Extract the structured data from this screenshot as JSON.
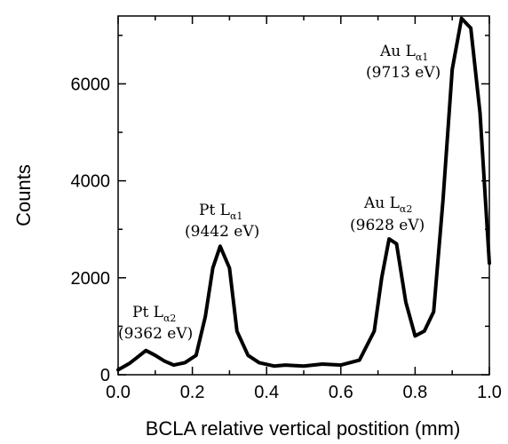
{
  "chart_data": {
    "type": "line",
    "xlabel": "BCLA relative vertical postition (mm)",
    "ylabel": "Counts",
    "xlim": [
      0.0,
      1.0
    ],
    "ylim": [
      0,
      7400
    ],
    "grid": false,
    "x_ticks": [
      "0.0",
      "0.2",
      "0.4",
      "0.6",
      "0.8",
      "1.0"
    ],
    "y_ticks": [
      "0",
      "2000",
      "4000",
      "6000"
    ],
    "series": [
      {
        "x": [
          0.0,
          0.03,
          0.05,
          0.075,
          0.1,
          0.125,
          0.15,
          0.18,
          0.21,
          0.235,
          0.255,
          0.275,
          0.3,
          0.32,
          0.35,
          0.38,
          0.42,
          0.45,
          0.5,
          0.55,
          0.6,
          0.65,
          0.69,
          0.71,
          0.73,
          0.75,
          0.775,
          0.8,
          0.825,
          0.85,
          0.875,
          0.9,
          0.925,
          0.95,
          0.975,
          1.0
        ],
        "y": [
          100,
          230,
          350,
          500,
          400,
          280,
          200,
          250,
          400,
          1200,
          2200,
          2650,
          2200,
          900,
          400,
          250,
          180,
          200,
          180,
          220,
          200,
          300,
          900,
          2000,
          2800,
          2700,
          1500,
          800,
          900,
          1300,
          3600,
          6300,
          7350,
          7150,
          5400,
          2300
        ]
      }
    ],
    "annotations": [
      {
        "name": "Pt L",
        "sub": "α2",
        "energy": "(9362 eV)"
      },
      {
        "name": "Pt L",
        "sub": "α1",
        "energy": "(9442 eV)"
      },
      {
        "name": "Au L",
        "sub": "α2",
        "energy": "(9628 eV)"
      },
      {
        "name": "Au L",
        "sub": "α1",
        "energy": "(9713 eV)"
      }
    ]
  }
}
